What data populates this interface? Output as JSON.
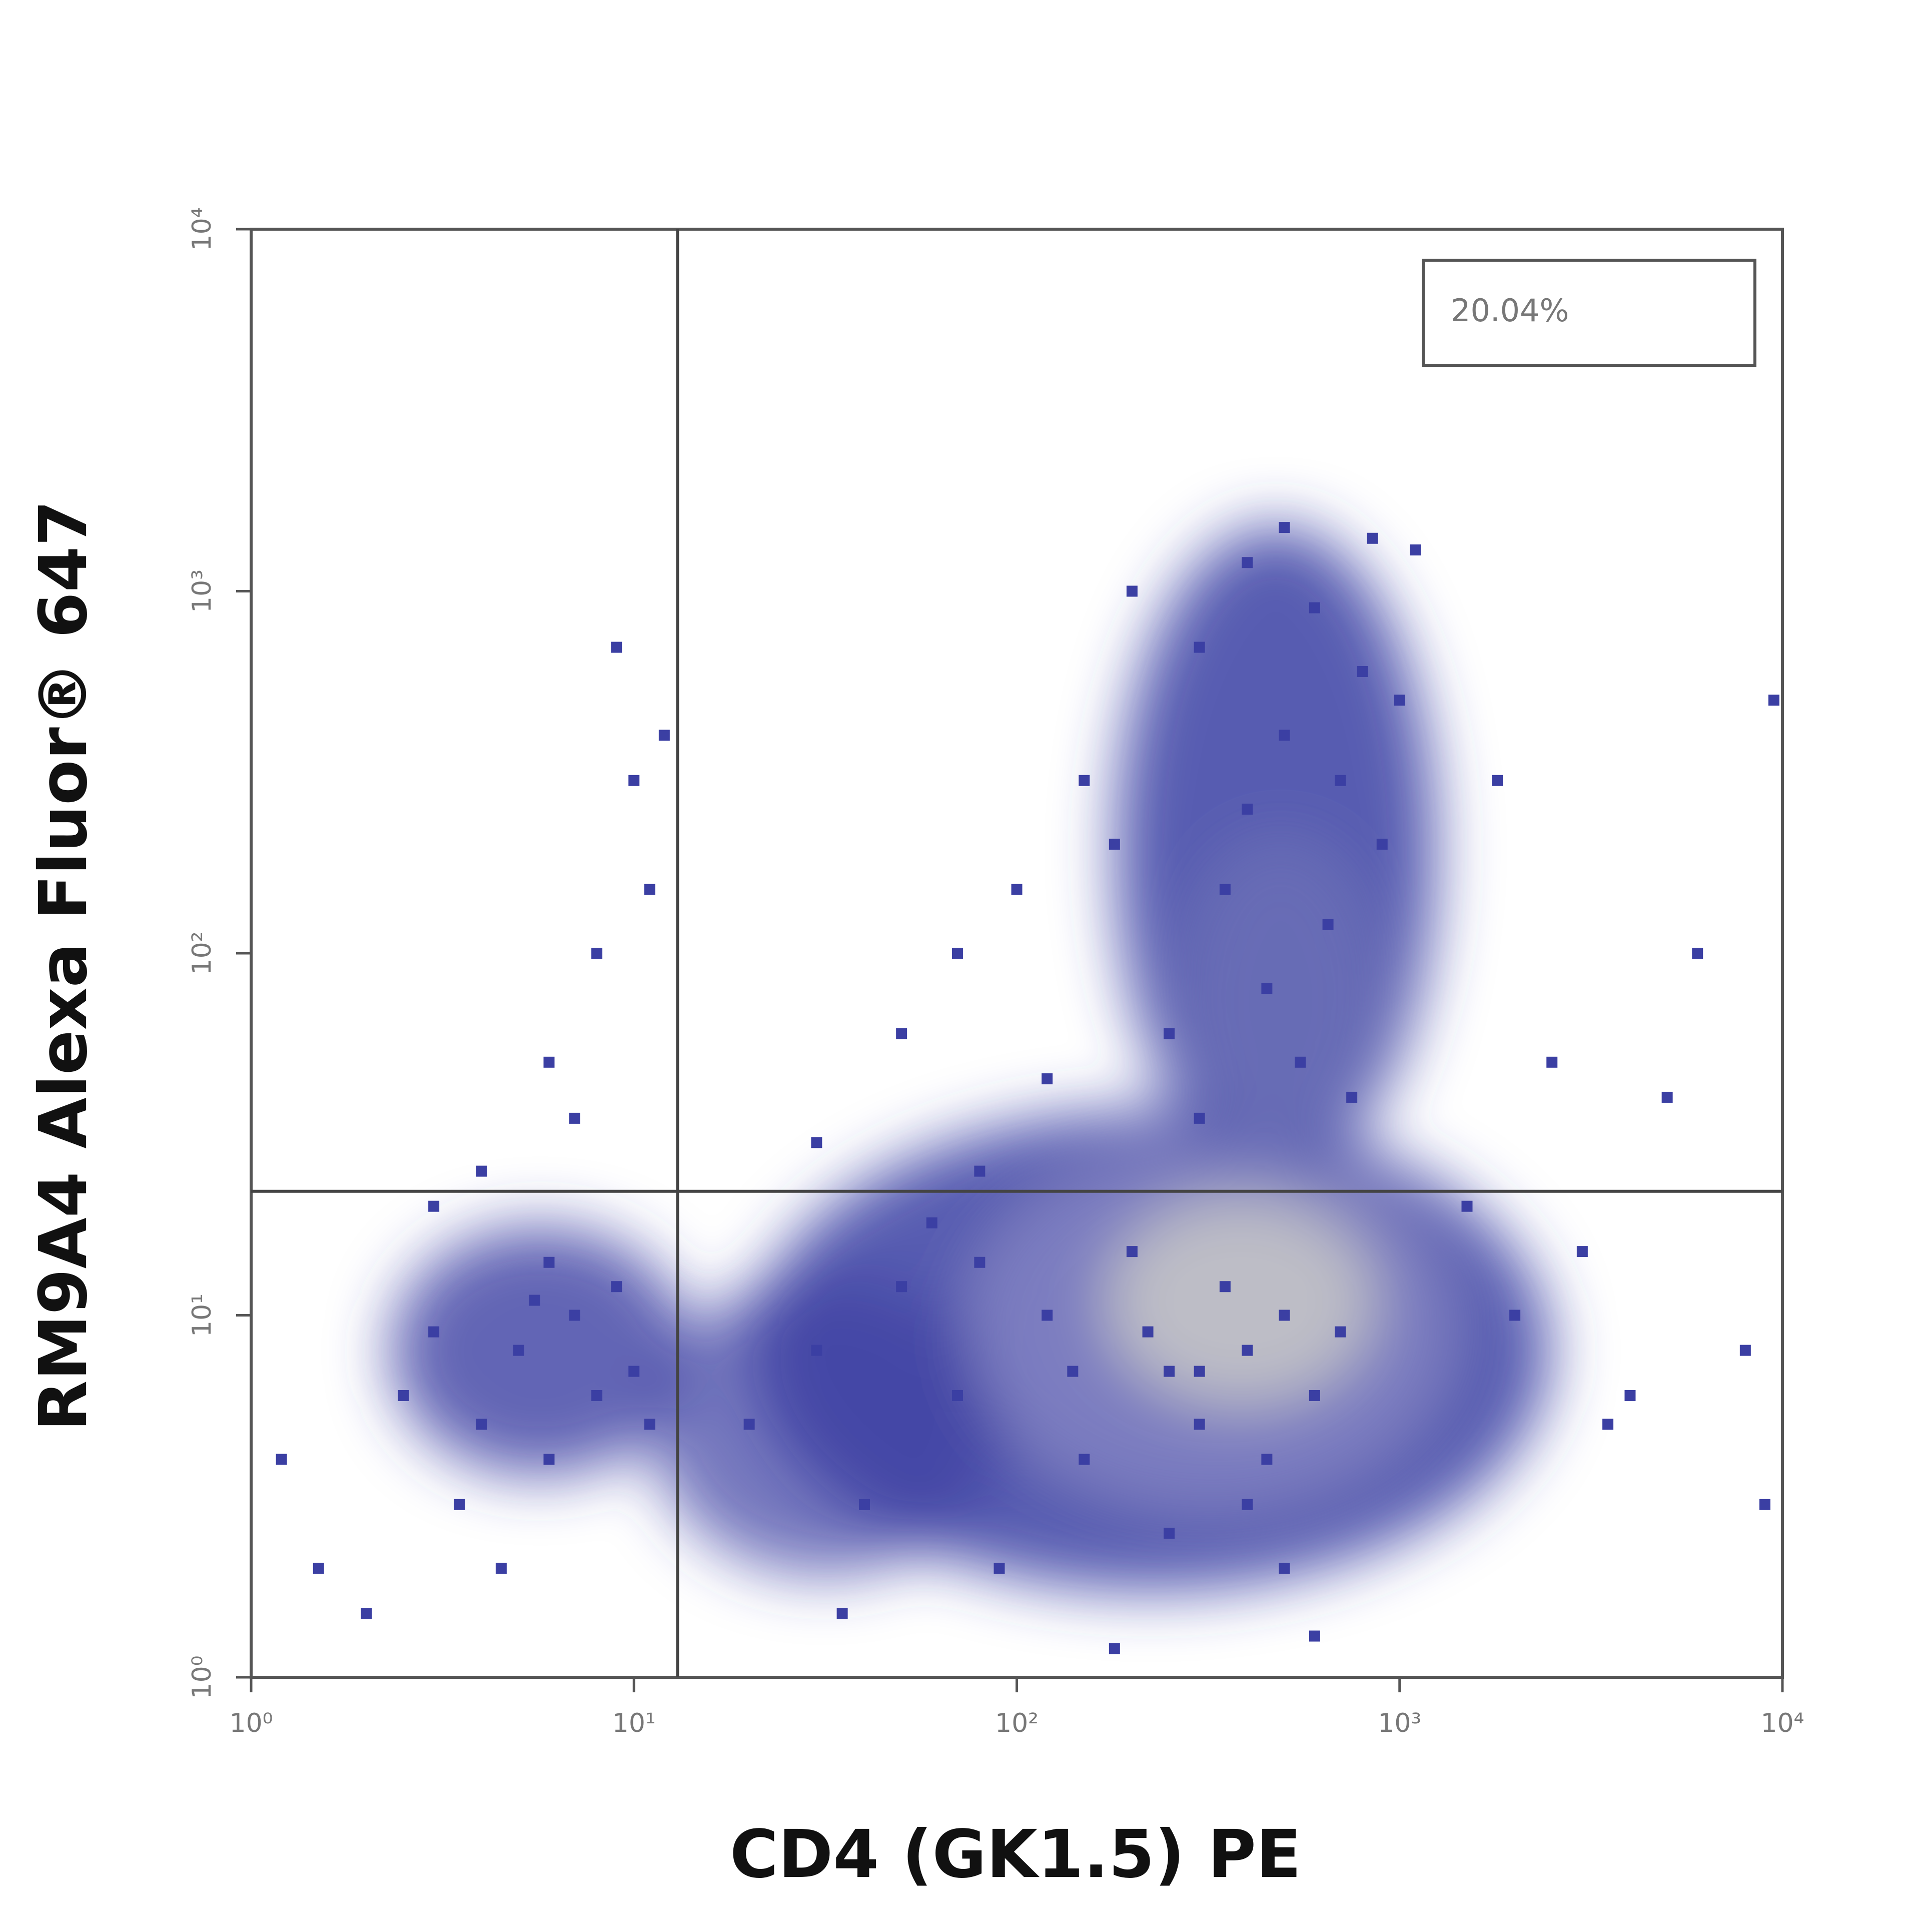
{
  "chart_data": {
    "type": "scatter",
    "xlabel": "CD4 (GK1.5) PE",
    "ylabel": "RM9A4 Alexa Fluor® 647",
    "annotation": "20.04%",
    "xscale": "log",
    "yscale": "log",
    "xlim": [
      1,
      10000
    ],
    "ylim": [
      1,
      10000
    ],
    "xticks": [
      {
        "value": 1,
        "label": "10⁰"
      },
      {
        "value": 10,
        "label": "10¹"
      },
      {
        "value": 100,
        "label": "10²"
      },
      {
        "value": 1000,
        "label": "10³"
      },
      {
        "value": 10000,
        "label": "10⁴"
      }
    ],
    "yticks": [
      {
        "value": 1,
        "label": "10⁰"
      },
      {
        "value": 10,
        "label": "10¹"
      },
      {
        "value": 100,
        "label": "10²"
      },
      {
        "value": 1000,
        "label": "10³"
      },
      {
        "value": 10000,
        "label": "10⁴"
      }
    ],
    "quadrant_x": 13,
    "quadrant_y": 22,
    "color": "#3b3fa3",
    "x": [
      2.5,
      3,
      4,
      5,
      6,
      7,
      8,
      9,
      3.5,
      10,
      6,
      4.5,
      2,
      11,
      5.5,
      20,
      30,
      40,
      50,
      70,
      90,
      120,
      150,
      200,
      250,
      300,
      35,
      60,
      180,
      400,
      500,
      600,
      80,
      140,
      220,
      200,
      300,
      400,
      500,
      600,
      700,
      800,
      900,
      350,
      450,
      550,
      650,
      750,
      300,
      1000,
      250,
      850,
      500,
      400,
      1100,
      30,
      50,
      70,
      100,
      120,
      150,
      80,
      180,
      1500,
      2000,
      3000,
      4000,
      5000,
      6000,
      8000,
      9000,
      2500,
      9500,
      1800,
      3500,
      9,
      10,
      8,
      6,
      4,
      11,
      12,
      7,
      3,
      1.2,
      1.5,
      300,
      400,
      500,
      600,
      350,
      450,
      700,
      250
    ],
    "y": [
      6,
      9,
      5,
      8,
      4,
      10,
      6,
      12,
      3,
      7,
      14,
      2,
      1.5,
      5,
      11,
      5,
      8,
      3,
      12,
      6,
      2,
      10,
      4,
      15,
      2.5,
      7,
      1.5,
      18,
      1.2,
      3,
      2,
      1.3,
      14,
      7,
      9,
      1000,
      700,
      1200,
      400,
      900,
      300,
      600,
      200,
      150,
      80,
      50,
      120,
      40,
      35,
      500,
      60,
      1400,
      1500,
      250,
      1300,
      30,
      60,
      100,
      150,
      45,
      300,
      25,
      200,
      20,
      10,
      15,
      6,
      40,
      100,
      8,
      3,
      50,
      500,
      300,
      5,
      700,
      300,
      100,
      50,
      25,
      150,
      400,
      35,
      20,
      4,
      2,
      5,
      8,
      10,
      6,
      12,
      4,
      9,
      7
    ]
  }
}
